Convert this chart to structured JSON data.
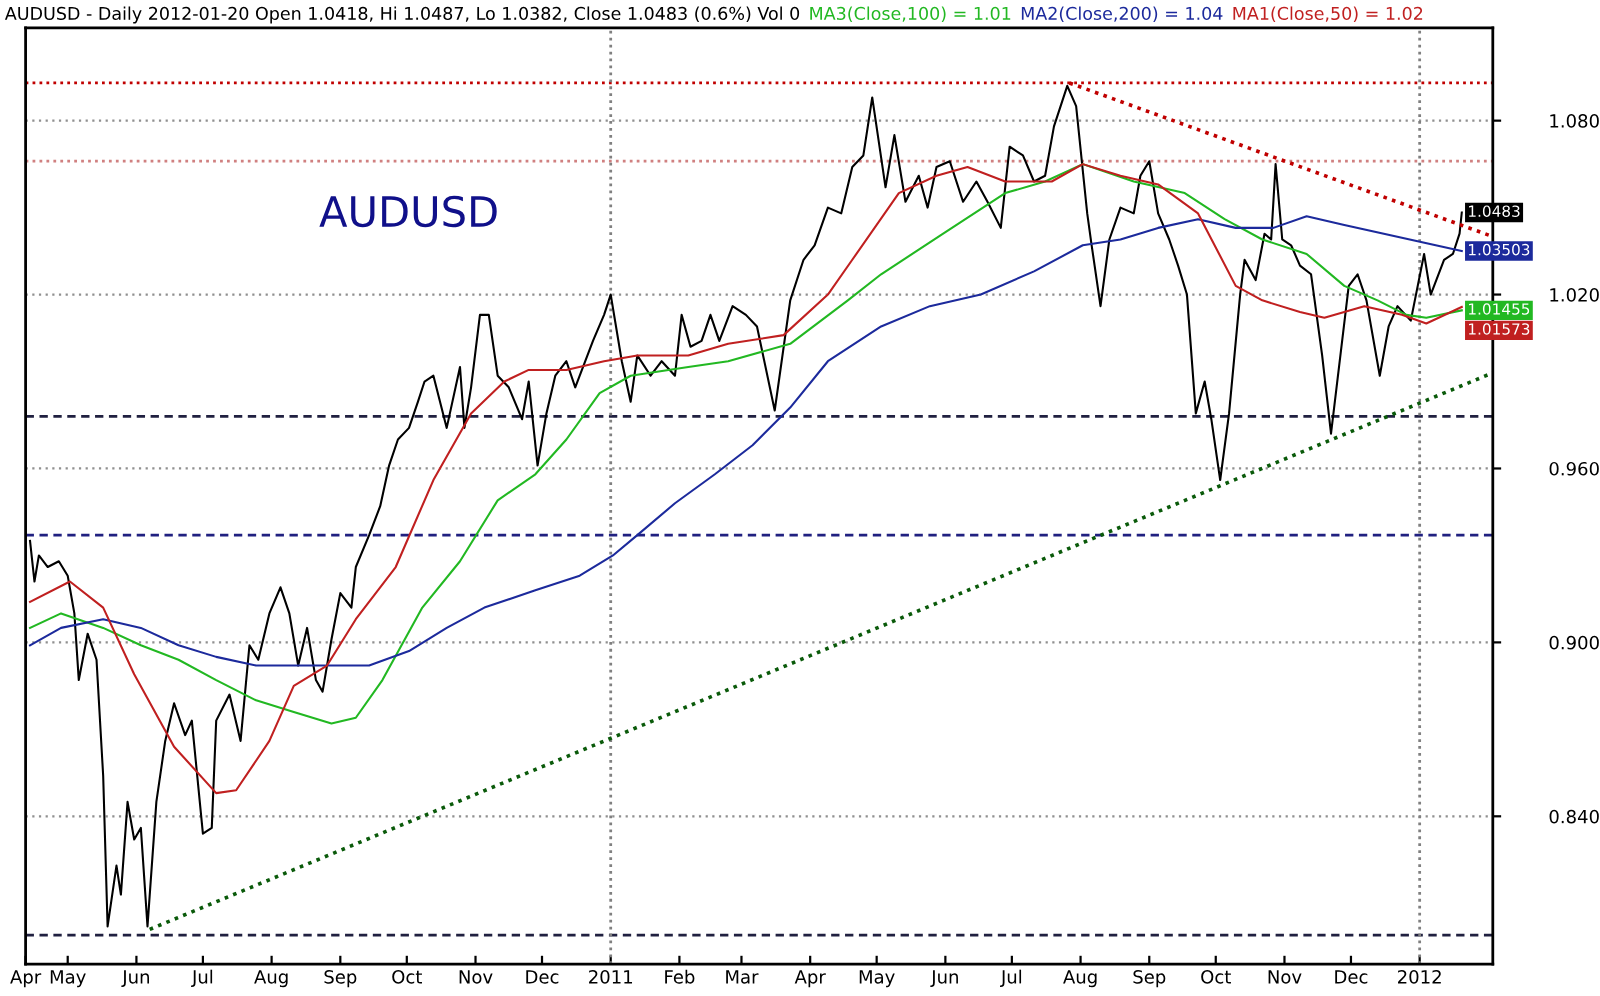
{
  "chart_data": {
    "type": "line",
    "title": "AUDUSD - Daily 2012-01-20 Open 1.0418, Hi 1.0487, Lo 1.0382, Close 1.0483 (0.6%) Vol 0",
    "annotations": [
      "AUDUSD"
    ],
    "xlim": [
      "2010-04-12",
      "2012-02-03"
    ],
    "xticks": [
      {
        "value": "2010-04-12",
        "label": "Apr"
      },
      {
        "value": "2010-05-01",
        "label": "May"
      },
      {
        "value": "2010-06-01",
        "label": "Jun"
      },
      {
        "value": "2010-07-01",
        "label": "Jul"
      },
      {
        "value": "2010-08-01",
        "label": "Aug"
      },
      {
        "value": "2010-09-01",
        "label": "Sep"
      },
      {
        "value": "2010-10-01",
        "label": "Oct"
      },
      {
        "value": "2010-11-01",
        "label": "Nov"
      },
      {
        "value": "2010-12-01",
        "label": "Dec"
      },
      {
        "value": "2011-01-01",
        "label": "2011"
      },
      {
        "value": "2011-02-01",
        "label": "Feb"
      },
      {
        "value": "2011-03-01",
        "label": "Mar"
      },
      {
        "value": "2011-04-01",
        "label": "Apr"
      },
      {
        "value": "2011-05-01",
        "label": "May"
      },
      {
        "value": "2011-06-01",
        "label": "Jun"
      },
      {
        "value": "2011-07-01",
        "label": "Jul"
      },
      {
        "value": "2011-08-01",
        "label": "Aug"
      },
      {
        "value": "2011-09-01",
        "label": "Sep"
      },
      {
        "value": "2011-10-01",
        "label": "Oct"
      },
      {
        "value": "2011-11-01",
        "label": "Nov"
      },
      {
        "value": "2011-12-01",
        "label": "Dec"
      },
      {
        "value": "2012-01-01",
        "label": "2012"
      }
    ],
    "ylim": [
      0.789,
      1.112
    ],
    "yticks": [
      {
        "value": 0.84,
        "label": "0.840"
      },
      {
        "value": 0.9,
        "label": "0.900"
      },
      {
        "value": 0.96,
        "label": "0.960"
      },
      {
        "value": 1.02,
        "label": "1.020"
      },
      {
        "value": 1.08,
        "label": "1.080"
      }
    ],
    "grid": "y",
    "legend": "top",
    "marker": "none",
    "line_style": "solid",
    "ref_lines": [
      {
        "axis": "y",
        "value": 1.093,
        "color": "#c00000",
        "line_style": "dotted"
      },
      {
        "axis": "y",
        "value": 1.066,
        "color": "#d08080",
        "line_style": "dotted"
      },
      {
        "axis": "y",
        "value": 0.978,
        "color": "#202040",
        "line_style": "dashed"
      },
      {
        "axis": "y",
        "value": 0.937,
        "color": "#202080",
        "line_style": "dashed"
      },
      {
        "axis": "y",
        "value": 0.799,
        "color": "#202040",
        "line_style": "dashed"
      },
      {
        "axis": "x",
        "value": "2011-01-01",
        "color": "#808080",
        "line_style": "dotted"
      },
      {
        "axis": "x",
        "value": "2012-01-01",
        "color": "#808080",
        "line_style": "dotted"
      }
    ],
    "series": [
      {
        "color": "#000000",
        "value_labels": [
          null,
          null,
          null,
          null,
          null,
          null,
          null,
          null,
          null,
          null,
          null,
          null,
          null,
          null,
          null,
          null,
          null,
          null,
          null,
          null,
          null,
          null,
          null,
          null,
          null,
          null,
          null,
          null,
          null,
          null,
          null,
          null,
          null,
          null,
          null,
          null,
          null,
          null,
          null,
          null,
          null,
          null,
          null,
          null,
          null,
          null,
          null,
          null,
          null,
          null,
          null,
          null,
          null,
          null,
          null,
          null,
          null,
          null,
          null,
          null,
          null,
          null,
          null,
          null,
          null,
          null,
          null,
          null,
          null,
          null,
          null,
          null,
          null,
          null,
          null,
          null,
          null,
          null,
          null,
          null,
          null,
          null,
          null,
          null,
          null,
          null,
          null,
          null,
          null,
          null,
          null,
          null,
          null,
          null,
          null,
          null,
          null,
          null,
          null,
          null,
          null,
          null,
          null,
          null,
          null,
          null,
          null,
          null,
          null,
          null,
          null,
          null,
          null,
          null,
          null,
          null,
          null,
          null,
          null,
          null,
          null,
          null,
          null,
          null,
          null,
          null,
          null,
          null,
          null,
          null,
          null,
          null,
          null,
          null,
          null,
          null,
          null,
          null,
          null,
          null,
          null,
          null,
          null,
          null,
          null,
          null,
          null,
          null,
          null,
          "1.0483"
        ],
        "x": [
          "2010-04-14",
          "2010-04-16",
          "2010-04-18",
          "2010-04-22",
          "2010-04-27",
          "2010-05-01",
          "2010-05-04",
          "2010-05-06",
          "2010-05-10",
          "2010-05-14",
          "2010-05-17",
          "2010-05-19",
          "2010-05-23",
          "2010-05-25",
          "2010-05-28",
          "2010-05-31",
          "2010-06-03",
          "2010-06-06",
          "2010-06-10",
          "2010-06-14",
          "2010-06-18",
          "2010-06-23",
          "2010-06-26",
          "2010-07-01",
          "2010-07-05",
          "2010-07-07",
          "2010-07-13",
          "2010-07-18",
          "2010-07-22",
          "2010-07-26",
          "2010-07-31",
          "2010-08-05",
          "2010-08-09",
          "2010-08-13",
          "2010-08-17",
          "2010-08-21",
          "2010-08-24",
          "2010-08-28",
          "2010-09-01",
          "2010-09-06",
          "2010-09-08",
          "2010-09-14",
          "2010-09-19",
          "2010-09-23",
          "2010-09-27",
          "2010-10-02",
          "2010-10-06",
          "2010-10-09",
          "2010-10-13",
          "2010-10-19",
          "2010-10-25",
          "2010-10-27",
          "2010-10-30",
          "2010-11-03",
          "2010-11-07",
          "2010-11-11",
          "2010-11-16",
          "2010-11-22",
          "2010-11-25",
          "2010-11-29",
          "2010-12-03",
          "2010-12-07",
          "2010-12-12",
          "2010-12-16",
          "2010-12-24",
          "2010-12-29",
          "2011-01-01",
          "2011-01-06",
          "2011-01-10",
          "2011-01-13",
          "2011-01-19",
          "2011-01-24",
          "2011-01-30",
          "2011-02-02",
          "2011-02-06",
          "2011-02-11",
          "2011-02-15",
          "2011-02-19",
          "2011-02-25",
          "2011-03-03",
          "2011-03-08",
          "2011-03-16",
          "2011-03-23",
          "2011-03-29",
          "2011-04-03",
          "2011-04-09",
          "2011-04-15",
          "2011-04-20",
          "2011-04-25",
          "2011-04-29",
          "2011-05-05",
          "2011-05-09",
          "2011-05-14",
          "2011-05-20",
          "2011-05-24",
          "2011-05-28",
          "2011-06-03",
          "2011-06-09",
          "2011-06-15",
          "2011-06-20",
          "2011-06-26",
          "2011-06-30",
          "2011-07-06",
          "2011-07-11",
          "2011-07-16",
          "2011-07-20",
          "2011-07-26",
          "2011-07-30",
          "2011-08-04",
          "2011-08-06",
          "2011-08-10",
          "2011-08-14",
          "2011-08-19",
          "2011-08-25",
          "2011-08-28",
          "2011-09-01",
          "2011-09-05",
          "2011-09-10",
          "2011-09-14",
          "2011-09-18",
          "2011-09-22",
          "2011-09-26",
          "2011-09-29",
          "2011-10-03",
          "2011-10-07",
          "2011-10-12",
          "2011-10-14",
          "2011-10-19",
          "2011-10-23",
          "2011-10-26",
          "2011-10-28",
          "2011-10-31",
          "2011-11-04",
          "2011-11-08",
          "2011-11-13",
          "2011-11-18",
          "2011-11-22",
          "2011-11-30",
          "2011-12-04",
          "2011-12-08",
          "2011-12-14",
          "2011-12-18",
          "2011-12-22",
          "2011-12-28",
          "2012-01-03",
          "2012-01-06",
          "2012-01-12",
          "2012-01-16",
          "2012-01-19",
          "2012-01-20"
        ],
        "values": [
          0.935,
          0.921,
          0.93,
          0.926,
          0.928,
          0.923,
          0.91,
          0.887,
          0.903,
          0.894,
          0.854,
          0.802,
          0.823,
          0.813,
          0.845,
          0.832,
          0.836,
          0.802,
          0.845,
          0.866,
          0.879,
          0.868,
          0.873,
          0.834,
          0.836,
          0.873,
          0.882,
          0.866,
          0.899,
          0.894,
          0.91,
          0.919,
          0.91,
          0.892,
          0.905,
          0.887,
          0.883,
          0.901,
          0.917,
          0.912,
          0.926,
          0.937,
          0.947,
          0.961,
          0.97,
          0.974,
          0.983,
          0.99,
          0.992,
          0.974,
          0.995,
          0.974,
          0.988,
          1.013,
          1.013,
          0.992,
          0.988,
          0.977,
          0.99,
          0.961,
          0.979,
          0.992,
          0.997,
          0.988,
          1.004,
          1.013,
          1.02,
          0.997,
          0.983,
          0.999,
          0.992,
          0.997,
          0.992,
          1.013,
          1.002,
          1.004,
          1.013,
          1.004,
          1.016,
          1.013,
          1.009,
          0.98,
          1.018,
          1.032,
          1.037,
          1.05,
          1.048,
          1.064,
          1.068,
          1.088,
          1.057,
          1.075,
          1.052,
          1.061,
          1.05,
          1.064,
          1.066,
          1.052,
          1.059,
          1.052,
          1.043,
          1.071,
          1.068,
          1.059,
          1.061,
          1.078,
          1.092,
          1.085,
          1.048,
          1.037,
          1.016,
          1.039,
          1.05,
          1.048,
          1.061,
          1.066,
          1.048,
          1.039,
          1.03,
          1.02,
          0.979,
          0.99,
          0.977,
          0.956,
          0.979,
          1.02,
          1.032,
          1.025,
          1.041,
          1.039,
          1.065,
          1.039,
          1.037,
          1.03,
          1.027,
          0.999,
          0.972,
          1.023,
          1.027,
          1.018,
          0.992,
          1.009,
          1.016,
          1.011,
          1.034,
          1.02,
          1.032,
          1.034,
          1.041,
          1.0483
        ]
      },
      {
        "name": "MA3(Close,100) = 1.01",
        "color": "#22b822",
        "value_labels": [
          null,
          null,
          null,
          null,
          null,
          null,
          null,
          null,
          null,
          null,
          null,
          null,
          null,
          null,
          null,
          null,
          null,
          null,
          null,
          null,
          null,
          null,
          null,
          null,
          null,
          null,
          null,
          null,
          null,
          null,
          null,
          null,
          null,
          null,
          null,
          null,
          "1.01455"
        ],
        "x": [
          "2010-04-14",
          "2010-04-28",
          "2010-05-17",
          "2010-06-03",
          "2010-06-20",
          "2010-07-07",
          "2010-07-25",
          "2010-08-11",
          "2010-08-28",
          "2010-09-08",
          "2010-09-20",
          "2010-10-08",
          "2010-10-25",
          "2010-11-11",
          "2010-11-28",
          "2010-12-12",
          "2010-12-27",
          "2011-01-10",
          "2011-02-05",
          "2011-02-23",
          "2011-03-23",
          "2011-04-18",
          "2011-05-03",
          "2011-05-31",
          "2011-06-28",
          "2011-07-16",
          "2011-08-02",
          "2011-08-25",
          "2011-09-17",
          "2011-10-05",
          "2011-10-22",
          "2011-11-11",
          "2011-11-28",
          "2011-12-13",
          "2011-12-26",
          "2012-01-04",
          "2012-01-20"
        ],
        "values": [
          0.905,
          0.91,
          0.905,
          0.899,
          0.894,
          0.887,
          0.88,
          0.876,
          0.872,
          0.874,
          0.887,
          0.912,
          0.928,
          0.949,
          0.958,
          0.97,
          0.986,
          0.992,
          0.995,
          0.997,
          1.003,
          1.018,
          1.027,
          1.041,
          1.055,
          1.059,
          1.065,
          1.059,
          1.055,
          1.046,
          1.039,
          1.034,
          1.023,
          1.018,
          1.013,
          1.012,
          1.01455
        ]
      },
      {
        "name": "MA2(Close,200) = 1.04",
        "color": "#1c2a9c",
        "value_labels": [
          null,
          null,
          null,
          null,
          null,
          null,
          null,
          null,
          null,
          null,
          null,
          null,
          null,
          null,
          null,
          null,
          null,
          null,
          null,
          null,
          null,
          null,
          null,
          null,
          null,
          null,
          null,
          null,
          null,
          null,
          null,
          null,
          null,
          null,
          "1.03503"
        ],
        "x": [
          "2010-04-14",
          "2010-04-28",
          "2010-05-17",
          "2010-06-03",
          "2010-06-20",
          "2010-07-07",
          "2010-07-25",
          "2010-08-11",
          "2010-08-28",
          "2010-09-14",
          "2010-10-02",
          "2010-10-19",
          "2010-11-05",
          "2010-11-28",
          "2010-12-18",
          "2011-01-02",
          "2011-01-13",
          "2011-01-30",
          "2011-02-17",
          "2011-03-06",
          "2011-03-23",
          "2011-04-09",
          "2011-05-03",
          "2011-05-25",
          "2011-06-17",
          "2011-07-11",
          "2011-08-02",
          "2011-08-19",
          "2011-09-05",
          "2011-09-23",
          "2011-10-10",
          "2011-10-27",
          "2011-11-11",
          "2011-11-28",
          "2012-01-20"
        ],
        "values": [
          0.899,
          0.905,
          0.908,
          0.905,
          0.899,
          0.895,
          0.892,
          0.892,
          0.892,
          0.892,
          0.897,
          0.905,
          0.912,
          0.918,
          0.923,
          0.93,
          0.937,
          0.948,
          0.958,
          0.968,
          0.981,
          0.997,
          1.009,
          1.016,
          1.02,
          1.028,
          1.037,
          1.039,
          1.043,
          1.046,
          1.043,
          1.043,
          1.047,
          1.044,
          1.03503
        ]
      },
      {
        "name": "MA1(Close,50) = 1.02",
        "color": "#c02020",
        "value_labels": [
          null,
          null,
          null,
          null,
          null,
          null,
          null,
          null,
          null,
          null,
          null,
          null,
          null,
          null,
          null,
          null,
          null,
          null,
          null,
          null,
          null,
          null,
          null,
          null,
          null,
          null,
          null,
          null,
          null,
          null,
          null,
          null,
          null,
          null,
          null,
          null,
          null,
          null,
          null,
          null,
          "1.01573"
        ],
        "x": [
          "2010-04-14",
          "2010-05-02",
          "2010-05-17",
          "2010-05-31",
          "2010-06-18",
          "2010-07-07",
          "2010-07-16",
          "2010-07-31",
          "2010-08-11",
          "2010-08-26",
          "2010-09-08",
          "2010-09-26",
          "2010-10-13",
          "2010-10-30",
          "2010-11-14",
          "2010-11-25",
          "2010-12-12",
          "2010-12-29",
          "2011-01-13",
          "2011-02-05",
          "2011-02-23",
          "2011-03-20",
          "2011-04-09",
          "2011-04-20",
          "2011-05-11",
          "2011-05-28",
          "2011-06-11",
          "2011-06-28",
          "2011-07-19",
          "2011-08-02",
          "2011-08-19",
          "2011-09-05",
          "2011-09-23",
          "2011-10-10",
          "2011-10-22",
          "2011-11-08",
          "2011-11-19",
          "2011-12-07",
          "2011-12-24",
          "2012-01-04",
          "2012-01-20"
        ],
        "values": [
          0.914,
          0.921,
          0.912,
          0.889,
          0.864,
          0.848,
          0.849,
          0.866,
          0.885,
          0.892,
          0.908,
          0.926,
          0.956,
          0.979,
          0.99,
          0.994,
          0.994,
          0.997,
          0.999,
          0.999,
          1.003,
          1.006,
          1.02,
          1.032,
          1.055,
          1.061,
          1.064,
          1.059,
          1.059,
          1.065,
          1.061,
          1.058,
          1.048,
          1.023,
          1.018,
          1.014,
          1.012,
          1.016,
          1.013,
          1.01,
          1.01573
        ]
      },
      {
        "type": "line",
        "color": "#0a5a0a",
        "line_style": "dotted",
        "x": [
          "2010-06-07",
          "2012-02-03"
        ],
        "values": [
          0.801,
          0.993
        ]
      },
      {
        "type": "line",
        "color": "#c00000",
        "line_style": "dotted",
        "x": [
          "2011-07-27",
          "2012-02-03"
        ],
        "values": [
          1.093,
          1.04
        ]
      }
    ]
  }
}
